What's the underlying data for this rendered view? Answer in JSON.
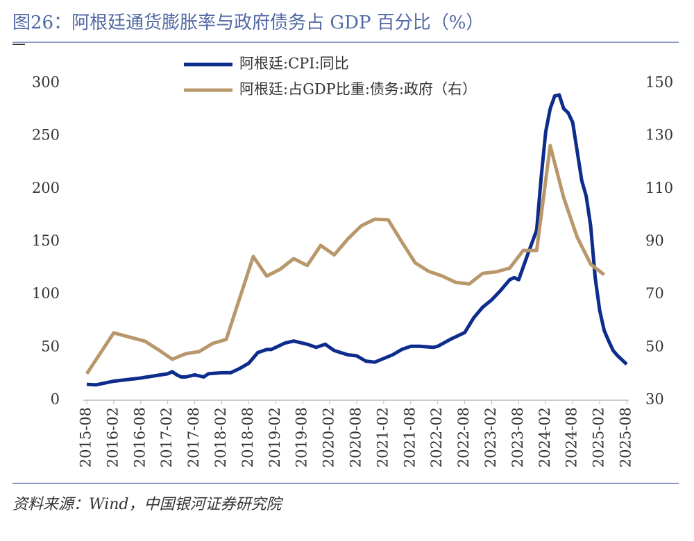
{
  "chart_data": {
    "type": "line",
    "title": "图26：阿根廷通货膨胀率与政府债务占 GDP 百分比（%）",
    "source": "资料来源：Wind，中国银河证券研究院",
    "xlim": [
      "2015-08",
      "2025-08"
    ],
    "xticks": [
      "2015-08",
      "2016-02",
      "2016-08",
      "2017-02",
      "2017-08",
      "2018-02",
      "2018-08",
      "2019-02",
      "2019-08",
      "2020-02",
      "2020-08",
      "2021-02",
      "2021-08",
      "2022-02",
      "2022-08",
      "2023-02",
      "2023-08",
      "2024-02",
      "2024-08",
      "2025-02",
      "2025-08"
    ],
    "ylim": [
      0,
      300
    ],
    "yticks": [
      0,
      50,
      100,
      150,
      200,
      250,
      300
    ],
    "y2lim": [
      30,
      150
    ],
    "y2ticks": [
      30,
      50,
      70,
      90,
      110,
      130,
      150
    ],
    "grid": false,
    "legend": "top",
    "series": [
      {
        "name": "阿根廷:CPI:同比",
        "color": "#0d2c8c",
        "x": [
          "2015-08",
          "2015-10",
          "2016-02",
          "2016-08",
          "2017-02",
          "2017-03",
          "2017-04",
          "2017-05",
          "2017-06",
          "2017-08",
          "2017-10",
          "2017-11",
          "2018-02",
          "2018-04",
          "2018-06",
          "2018-08",
          "2018-10",
          "2018-12",
          "2019-01",
          "2019-04",
          "2019-06",
          "2019-09",
          "2019-11",
          "2020-01",
          "2020-03",
          "2020-06",
          "2020-08",
          "2020-10",
          "2020-12",
          "2021-04",
          "2021-06",
          "2021-08",
          "2021-10",
          "2022-01",
          "2022-02",
          "2022-05",
          "2022-08",
          "2022-10",
          "2022-12",
          "2023-02",
          "2023-04",
          "2023-06",
          "2023-07",
          "2023-08",
          "2023-10",
          "2023-12",
          "2024-01",
          "2024-02",
          "2024-03",
          "2024-04",
          "2024-05",
          "2024-06",
          "2024-07",
          "2024-08",
          "2024-10",
          "2024-11",
          "2024-12",
          "2025-01",
          "2025-02",
          "2025-03",
          "2025-04",
          "2025-05",
          "2025-06",
          "2025-07",
          "2025-08"
        ],
        "values": [
          15,
          14.5,
          18,
          21,
          25,
          27,
          24,
          22,
          22,
          24,
          22,
          25,
          26,
          26,
          30,
          35,
          45,
          48,
          48,
          54,
          56,
          53,
          50,
          53,
          47,
          43,
          42,
          37,
          36,
          43,
          48,
          51,
          51,
          50,
          51,
          58,
          64,
          78,
          88,
          95,
          104,
          114,
          116,
          114,
          138,
          161,
          211,
          254,
          276,
          288,
          289,
          276,
          272,
          263,
          208,
          193,
          165,
          116,
          85,
          66,
          56,
          47,
          42,
          38,
          34
        ]
      },
      {
        "name": "阿根廷:占GDP比重:债务:政府（右）",
        "color": "#b8986b",
        "axis": "y2",
        "x": [
          "2015-08",
          "2016-02",
          "2016-09",
          "2016-12",
          "2017-03",
          "2017-06",
          "2017-09",
          "2017-12",
          "2018-03",
          "2018-09",
          "2018-12",
          "2019-03",
          "2019-06",
          "2019-09",
          "2019-12",
          "2020-03",
          "2020-06",
          "2020-09",
          "2020-12",
          "2021-03",
          "2021-06",
          "2021-09",
          "2021-12",
          "2022-03",
          "2022-06",
          "2022-09",
          "2022-12",
          "2023-03",
          "2023-06",
          "2023-09",
          "2023-12",
          "2024-03",
          "2024-06",
          "2024-09",
          "2024-12",
          "2025-03"
        ],
        "values": [
          40,
          55.5,
          52.3,
          49,
          45.5,
          47.6,
          48.4,
          51.5,
          53,
          84.4,
          77,
          79.6,
          83.6,
          81,
          88.6,
          85,
          91,
          96,
          98.5,
          98.3,
          90,
          82,
          78.8,
          77,
          74.6,
          74,
          78,
          78.6,
          80,
          86.7,
          86.7,
          126.4,
          106.7,
          91.7,
          81.5,
          77.5
        ]
      }
    ]
  }
}
